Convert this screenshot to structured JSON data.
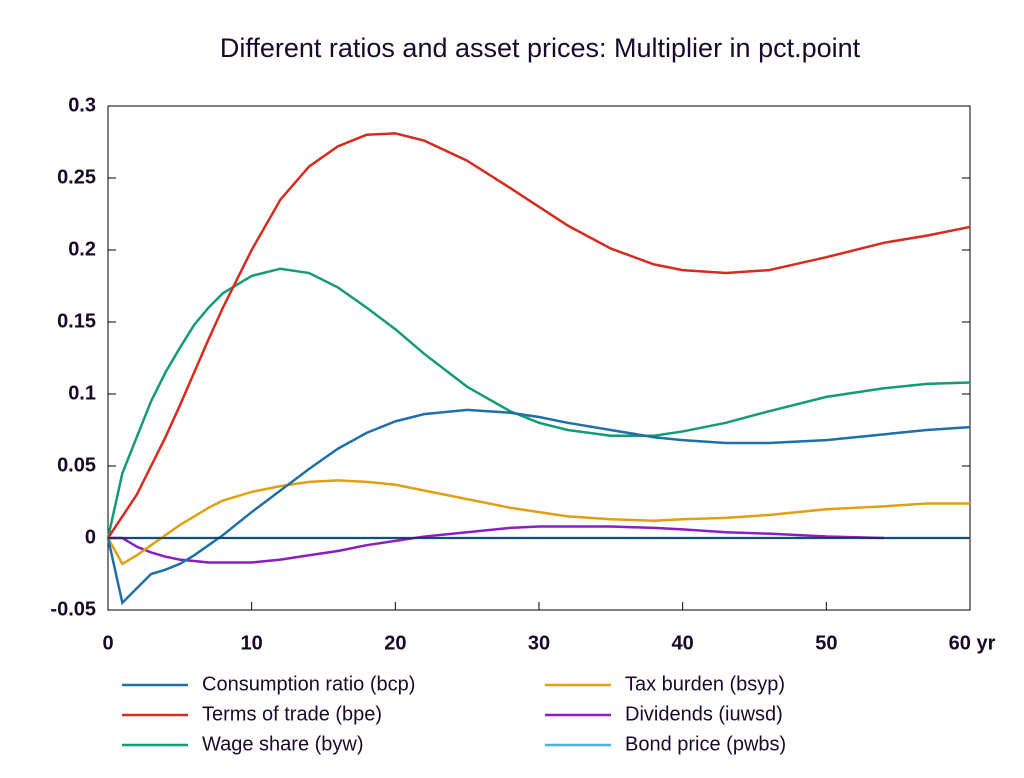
{
  "chart_data": {
    "type": "line",
    "title": "Different ratios and asset prices: Multiplier in pct.point",
    "x": [
      0,
      1,
      2,
      3,
      4,
      5,
      6,
      7,
      8,
      10,
      12,
      14,
      16,
      18,
      20,
      22,
      25,
      28,
      30,
      32,
      35,
      38,
      40,
      43,
      46,
      50,
      54,
      57,
      60
    ],
    "xlim": [
      0,
      60
    ],
    "xticks": [
      0,
      10,
      20,
      30,
      40,
      50,
      {
        "value": 60,
        "label": "60 yr"
      }
    ],
    "ylim": [
      -0.05,
      0.3
    ],
    "yticks": [
      -0.05,
      0,
      0.05,
      0.1,
      0.15,
      0.2,
      0.25,
      0.3
    ],
    "series": [
      {
        "name": "Consumption ratio (bcp)",
        "color": "#1f6fa8",
        "values": [
          0,
          -0.045,
          -0.035,
          -0.025,
          -0.022,
          -0.018,
          -0.012,
          -0.005,
          0.002,
          0.018,
          0.033,
          0.048,
          0.062,
          0.073,
          0.081,
          0.086,
          0.089,
          0.087,
          0.084,
          0.08,
          0.075,
          0.07,
          0.068,
          0.066,
          0.066,
          0.068,
          0.072,
          0.075,
          0.077
        ]
      },
      {
        "name": "Terms of trade (bpe)",
        "color": "#d62b1f",
        "values": [
          0,
          0.015,
          0.03,
          0.05,
          0.07,
          0.092,
          0.115,
          0.138,
          0.16,
          0.2,
          0.235,
          0.258,
          0.272,
          0.28,
          0.281,
          0.276,
          0.262,
          0.243,
          0.23,
          0.217,
          0.201,
          0.19,
          0.186,
          0.184,
          0.186,
          0.195,
          0.205,
          0.21,
          0.216
        ]
      },
      {
        "name": "Wage share (byw)",
        "color": "#129b74",
        "values": [
          0,
          0.045,
          0.07,
          0.095,
          0.115,
          0.132,
          0.148,
          0.16,
          0.17,
          0.182,
          0.187,
          0.184,
          0.174,
          0.16,
          0.145,
          0.128,
          0.105,
          0.088,
          0.08,
          0.075,
          0.071,
          0.071,
          0.074,
          0.08,
          0.088,
          0.098,
          0.104,
          0.107,
          0.108
        ]
      },
      {
        "name": "Tax burden (bsyp)",
        "color": "#e0a010",
        "values": [
          0,
          -0.018,
          -0.012,
          -0.005,
          0.002,
          0.009,
          0.015,
          0.021,
          0.026,
          0.032,
          0.036,
          0.039,
          0.04,
          0.039,
          0.037,
          0.033,
          0.027,
          0.021,
          0.018,
          0.015,
          0.013,
          0.012,
          0.013,
          0.014,
          0.016,
          0.02,
          0.022,
          0.024,
          0.024
        ]
      },
      {
        "name": "Dividends (iuwsd)",
        "color": "#8a1ec0",
        "values": [
          0,
          0,
          -0.006,
          -0.01,
          -0.013,
          -0.015,
          -0.016,
          -0.017,
          -0.017,
          -0.017,
          -0.015,
          -0.012,
          -0.009,
          -0.005,
          -0.002,
          0.001,
          0.004,
          0.007,
          0.008,
          0.008,
          0.008,
          0.007,
          0.006,
          0.004,
          0.003,
          0.001,
          0,
          null,
          null
        ]
      },
      {
        "name": "Bond price (pwbs)",
        "color": "#4fb0e6",
        "values": [
          0,
          0,
          0,
          0,
          0,
          0,
          0,
          0,
          0,
          0,
          0,
          0,
          0,
          0,
          0,
          0,
          0,
          0,
          0,
          0,
          0,
          0,
          0,
          0,
          0,
          0,
          0,
          0,
          0
        ]
      }
    ]
  }
}
